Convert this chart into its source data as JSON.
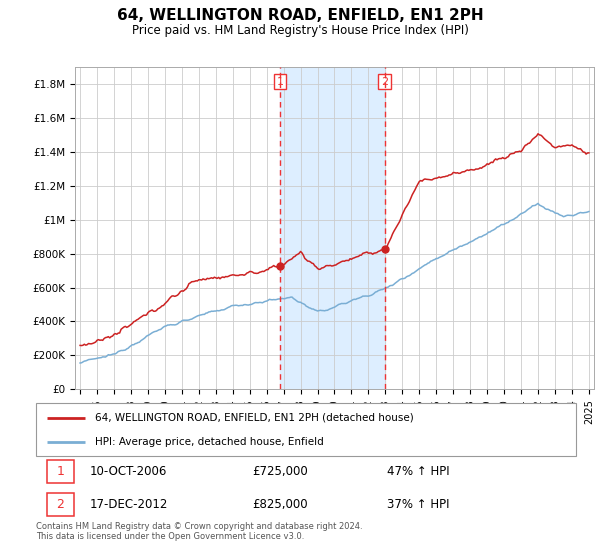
{
  "title": "64, WELLINGTON ROAD, ENFIELD, EN1 2PH",
  "subtitle": "Price paid vs. HM Land Registry's House Price Index (HPI)",
  "title_fontsize": 11,
  "subtitle_fontsize": 8.5,
  "background_color": "#ffffff",
  "grid_color": "#cccccc",
  "hpi_line_color": "#7aaed4",
  "price_line_color": "#cc2222",
  "shaded_region_color": "#ddeeff",
  "dashed_line_color": "#ee3333",
  "ylim": [
    0,
    1900000
  ],
  "yticks": [
    0,
    200000,
    400000,
    600000,
    800000,
    1000000,
    1200000,
    1400000,
    1600000,
    1800000
  ],
  "ytick_labels": [
    "£0",
    "£200K",
    "£400K",
    "£600K",
    "£800K",
    "£1M",
    "£1.2M",
    "£1.4M",
    "£1.6M",
    "£1.8M"
  ],
  "year_start": 1995,
  "year_end": 2025,
  "sale1_year": 2006.78,
  "sale1_price": 725000,
  "sale1_label": "1",
  "sale1_date": "10-OCT-2006",
  "sale1_pct": "47% ↑ HPI",
  "sale2_year": 2012.96,
  "sale2_price": 825000,
  "sale2_label": "2",
  "sale2_date": "17-DEC-2012",
  "sale2_pct": "37% ↑ HPI",
  "footer": "Contains HM Land Registry data © Crown copyright and database right 2024.\nThis data is licensed under the Open Government Licence v3.0.",
  "legend_label1": "64, WELLINGTON ROAD, ENFIELD, EN1 2PH (detached house)",
  "legend_label2": "HPI: Average price, detached house, Enfield"
}
